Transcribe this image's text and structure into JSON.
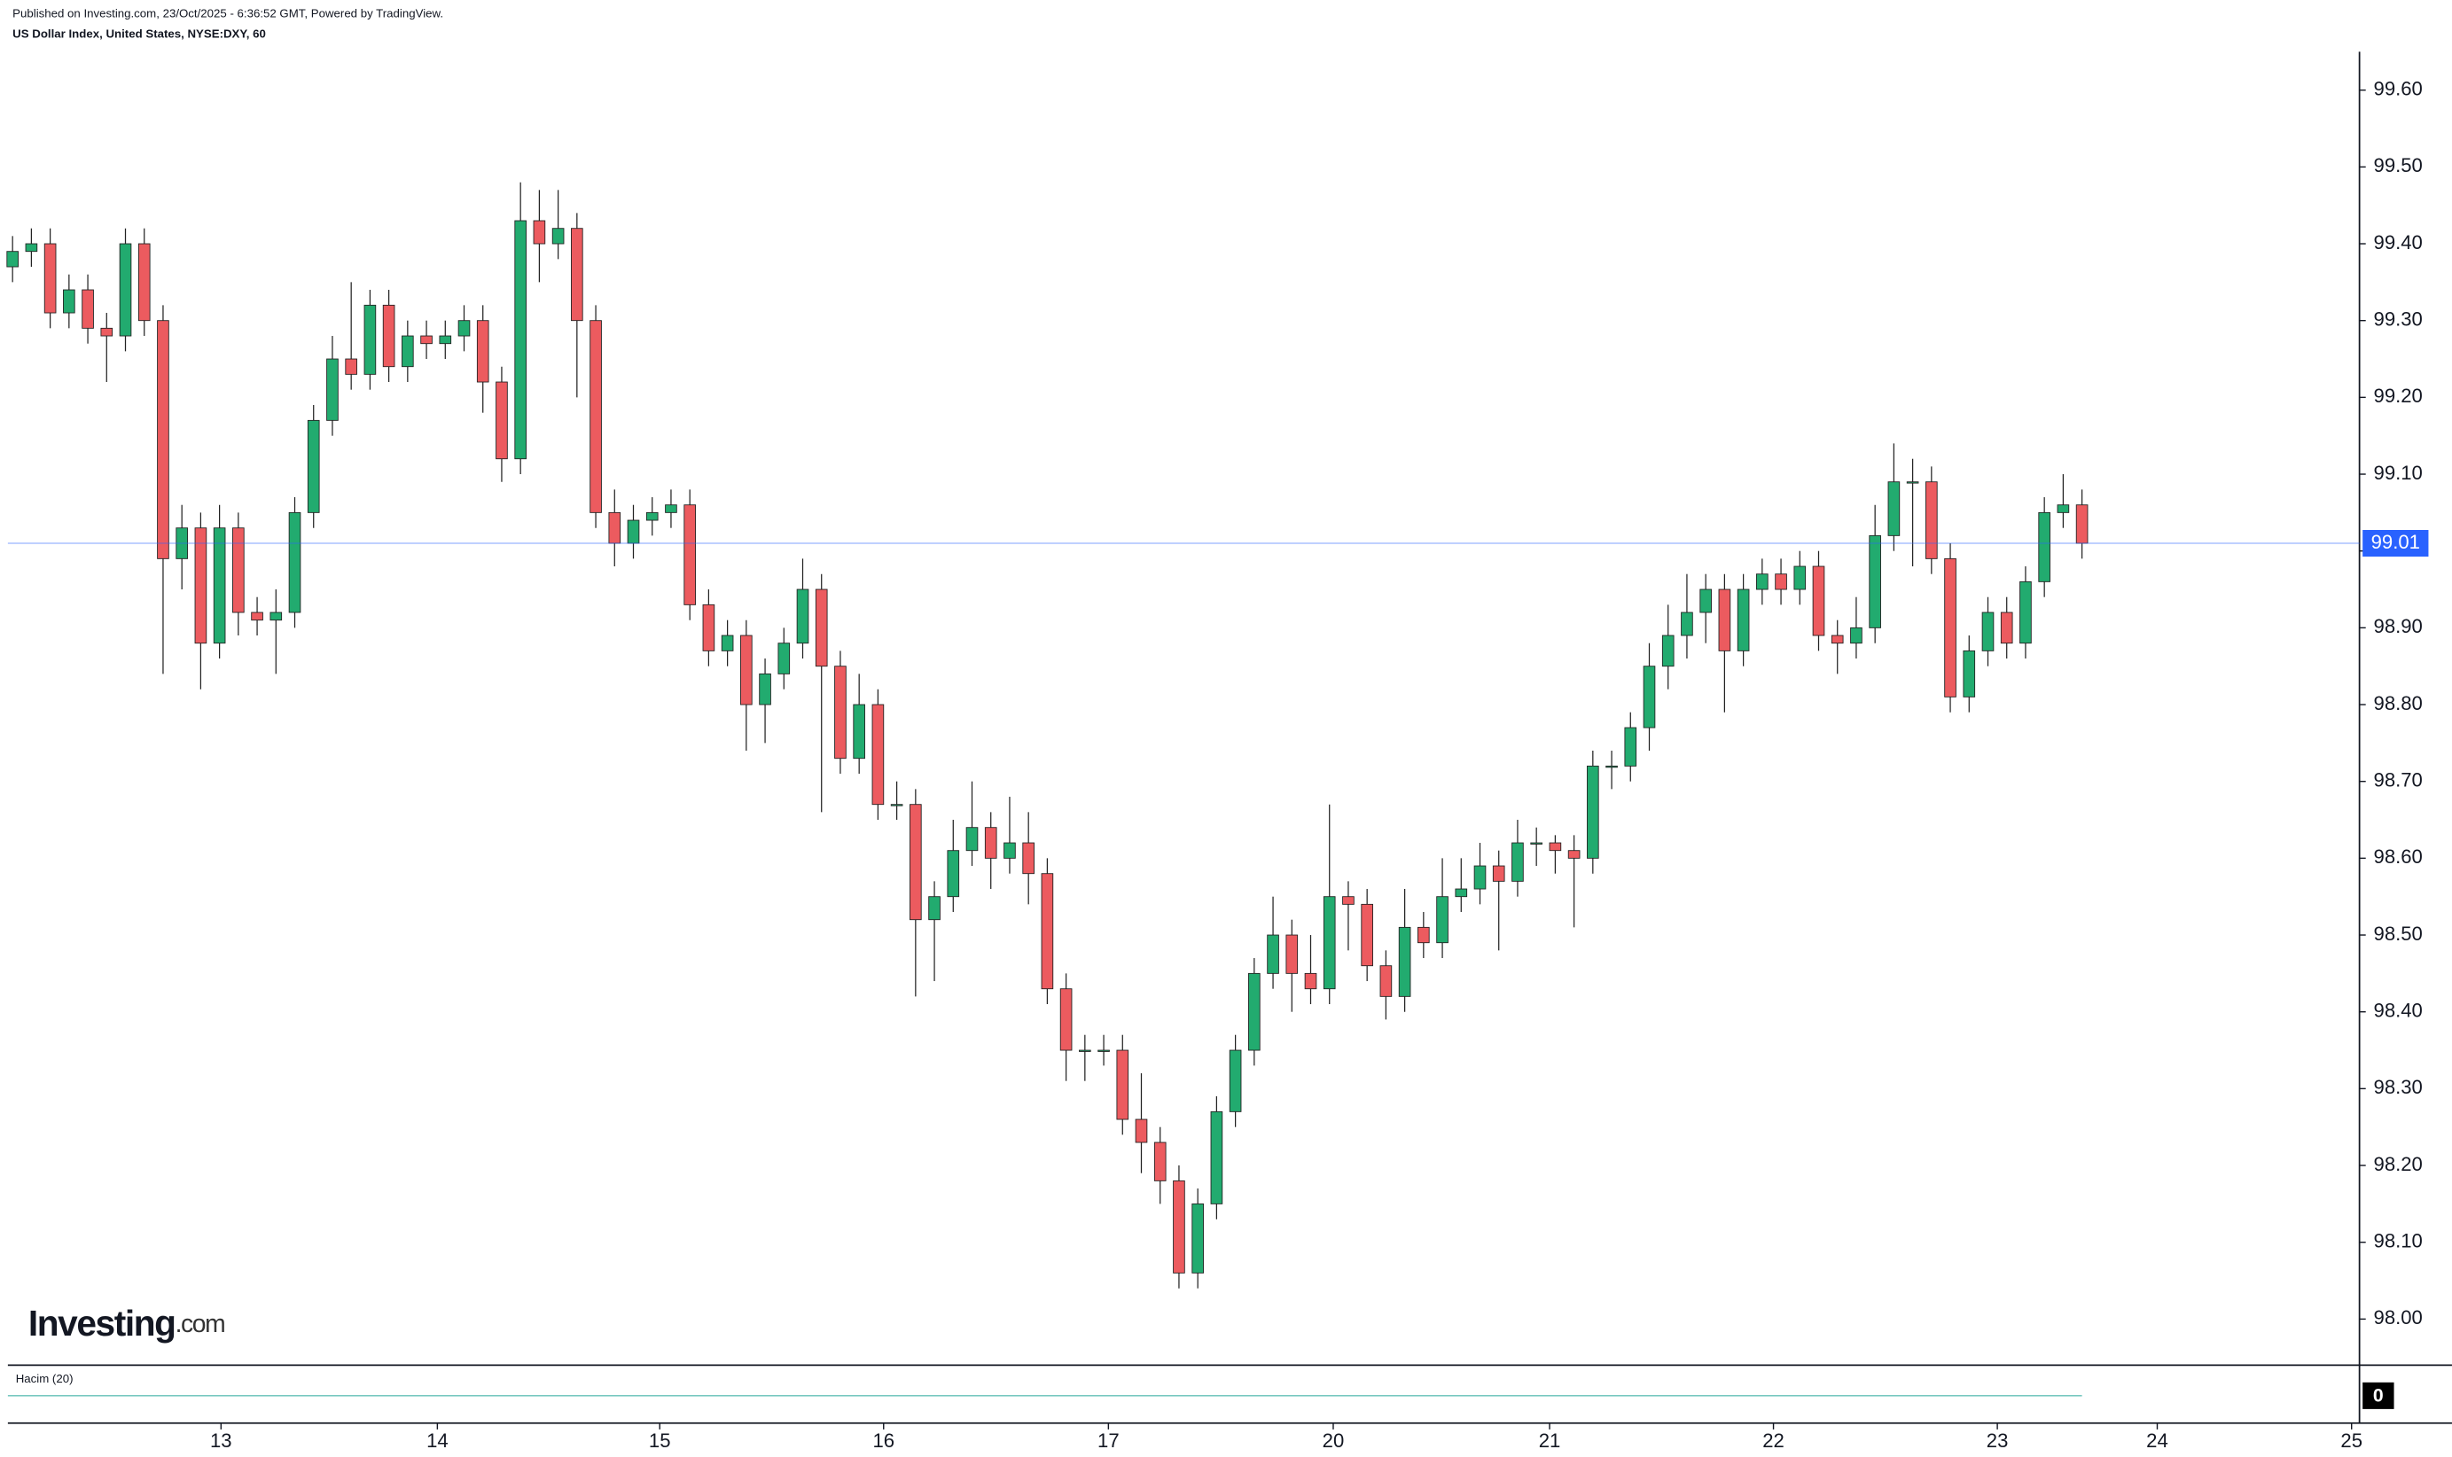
{
  "chart_data": {
    "type": "candlestick",
    "header": "Published on Investing.com, 23/Oct/2025 - 6:36:52 GMT, Powered by TradingView.",
    "title": "US Dollar Index, United States, NYSE:DXY, 60",
    "logo": "Investing",
    "logo_suffix": ".com",
    "volume_label": "Hacim (20)",
    "volume_ticks": [
      0
    ],
    "up_color": "#22ab6f",
    "down_color": "#ec5b5f",
    "last_price": 99.01,
    "last_price_color": "#2962ff",
    "x": [
      0,
      1,
      2,
      3,
      4,
      5,
      6,
      7,
      8,
      9,
      10,
      11,
      12,
      13,
      14,
      15,
      16,
      17,
      18,
      19,
      20,
      21,
      22,
      23,
      24,
      25,
      26,
      27,
      28,
      29,
      30,
      31,
      32,
      33,
      34,
      35,
      36,
      37,
      38,
      39,
      40,
      41,
      42,
      43,
      44,
      45,
      46,
      47,
      48,
      49,
      50,
      51,
      52,
      53,
      54,
      55,
      56,
      57,
      58,
      59,
      60,
      61,
      62,
      63,
      64,
      65,
      66,
      67,
      68,
      69,
      70,
      71,
      72,
      73,
      74,
      75,
      76,
      77,
      78,
      79,
      80,
      81,
      82,
      83,
      84,
      85,
      86,
      87,
      88,
      89,
      90,
      91,
      92,
      93,
      94,
      95,
      96,
      97,
      98,
      99,
      100,
      101,
      102,
      103,
      104,
      105,
      106,
      107,
      108,
      109,
      110
    ],
    "open": [
      99.37,
      99.39,
      99.4,
      99.31,
      99.34,
      99.29,
      99.28,
      99.4,
      99.3,
      98.99,
      99.03,
      98.88,
      99.03,
      98.92,
      98.91,
      98.92,
      99.05,
      99.17,
      99.25,
      99.23,
      99.32,
      99.24,
      99.28,
      99.27,
      99.28,
      99.3,
      99.22,
      99.12,
      99.43,
      99.4,
      99.42,
      99.3,
      99.05,
      99.01,
      99.04,
      99.05,
      99.06,
      98.93,
      98.87,
      98.89,
      98.8,
      98.84,
      98.88,
      98.95,
      98.85,
      98.73,
      98.8,
      98.67,
      98.67,
      98.52,
      98.55,
      98.61,
      98.64,
      98.6,
      98.62,
      98.58,
      98.43,
      98.35,
      98.35,
      98.35,
      98.26,
      98.23,
      98.18,
      98.06,
      98.15,
      98.27,
      98.35,
      98.45,
      98.5,
      98.45,
      98.43,
      98.55,
      98.54,
      98.46,
      98.42,
      98.51,
      98.49,
      98.55,
      98.56,
      98.59,
      98.57,
      98.62,
      98.62,
      98.61,
      98.6,
      98.72,
      98.72,
      98.77,
      98.85,
      98.89,
      98.92,
      98.95,
      98.87,
      98.95,
      98.97,
      98.95,
      98.98,
      98.89,
      98.88,
      98.9,
      99.02,
      99.09,
      99.09,
      98.99,
      98.81,
      98.87,
      98.92,
      98.88,
      98.96,
      99.05,
      99.06
    ],
    "high": [
      99.41,
      99.42,
      99.42,
      99.36,
      99.36,
      99.31,
      99.42,
      99.42,
      99.32,
      99.06,
      99.05,
      99.06,
      99.05,
      98.94,
      98.95,
      99.07,
      99.19,
      99.28,
      99.35,
      99.34,
      99.34,
      99.3,
      99.3,
      99.3,
      99.32,
      99.32,
      99.24,
      99.48,
      99.47,
      99.47,
      99.44,
      99.32,
      99.08,
      99.06,
      99.07,
      99.08,
      99.08,
      98.95,
      98.91,
      98.91,
      98.86,
      98.9,
      98.99,
      98.97,
      98.87,
      98.84,
      98.82,
      98.7,
      98.69,
      98.57,
      98.65,
      98.7,
      98.66,
      98.68,
      98.66,
      98.6,
      98.45,
      98.37,
      98.37,
      98.37,
      98.32,
      98.25,
      98.2,
      98.17,
      98.29,
      98.37,
      98.47,
      98.55,
      98.52,
      98.5,
      98.67,
      98.57,
      98.56,
      98.48,
      98.56,
      98.53,
      98.6,
      98.6,
      98.62,
      98.61,
      98.65,
      98.64,
      98.63,
      98.63,
      98.74,
      98.74,
      98.79,
      98.88,
      98.93,
      98.97,
      98.97,
      98.97,
      98.97,
      98.99,
      98.99,
      99.0,
      99.0,
      98.91,
      98.94,
      99.06,
      99.14,
      99.12,
      99.11,
      99.01,
      98.89,
      98.94,
      98.94,
      98.98,
      99.07,
      99.1,
      99.08
    ],
    "low": [
      99.35,
      99.37,
      99.29,
      99.29,
      99.27,
      99.22,
      99.26,
      99.28,
      98.84,
      98.95,
      98.82,
      98.86,
      98.89,
      98.89,
      98.84,
      98.9,
      99.03,
      99.15,
      99.21,
      99.21,
      99.22,
      99.22,
      99.25,
      99.25,
      99.26,
      99.18,
      99.09,
      99.1,
      99.35,
      99.38,
      99.2,
      99.03,
      98.98,
      98.99,
      99.02,
      99.03,
      98.91,
      98.85,
      98.85,
      98.74,
      98.75,
      98.82,
      98.86,
      98.66,
      98.71,
      98.71,
      98.65,
      98.65,
      98.42,
      98.44,
      98.53,
      98.59,
      98.56,
      98.58,
      98.54,
      98.41,
      98.31,
      98.31,
      98.33,
      98.24,
      98.19,
      98.15,
      98.04,
      98.04,
      98.13,
      98.25,
      98.33,
      98.43,
      98.4,
      98.41,
      98.41,
      98.48,
      98.44,
      98.39,
      98.4,
      98.47,
      98.47,
      98.53,
      98.54,
      98.48,
      98.55,
      98.59,
      98.58,
      98.51,
      98.58,
      98.69,
      98.7,
      98.74,
      98.82,
      98.86,
      98.88,
      98.79,
      98.85,
      98.93,
      98.93,
      98.93,
      98.87,
      98.84,
      98.86,
      98.88,
      99.0,
      98.98,
      98.97,
      98.79,
      98.79,
      98.85,
      98.86,
      98.86,
      98.94,
      99.03,
      98.99
    ],
    "close": [
      99.39,
      99.4,
      99.31,
      99.34,
      99.29,
      99.28,
      99.4,
      99.3,
      98.99,
      99.03,
      98.88,
      99.03,
      98.92,
      98.91,
      98.92,
      99.05,
      99.17,
      99.25,
      99.23,
      99.32,
      99.24,
      99.28,
      99.27,
      99.28,
      99.3,
      99.22,
      99.12,
      99.43,
      99.4,
      99.42,
      99.3,
      99.05,
      99.01,
      99.04,
      99.05,
      99.06,
      98.93,
      98.87,
      98.89,
      98.8,
      98.84,
      98.88,
      98.95,
      98.85,
      98.73,
      98.8,
      98.67,
      98.67,
      98.52,
      98.55,
      98.61,
      98.64,
      98.6,
      98.62,
      98.58,
      98.43,
      98.35,
      98.35,
      98.35,
      98.26,
      98.23,
      98.18,
      98.06,
      98.15,
      98.27,
      98.35,
      98.45,
      98.5,
      98.45,
      98.43,
      98.55,
      98.54,
      98.46,
      98.42,
      98.51,
      98.49,
      98.55,
      98.56,
      98.59,
      98.57,
      98.62,
      98.62,
      98.61,
      98.6,
      98.72,
      98.72,
      98.77,
      98.85,
      98.89,
      98.92,
      98.95,
      98.87,
      98.95,
      98.97,
      98.95,
      98.98,
      98.89,
      98.88,
      98.9,
      99.02,
      99.09,
      99.09,
      98.99,
      98.81,
      98.87,
      98.92,
      98.88,
      98.96,
      99.05,
      99.06,
      99.01
    ],
    "xlim": [
      -0.25,
      124.75
    ],
    "xticks": [
      {
        "value": 11.08,
        "label": "13"
      },
      {
        "value": 22.58,
        "label": "14"
      },
      {
        "value": 34.4,
        "label": "15"
      },
      {
        "value": 46.3,
        "label": "16"
      },
      {
        "value": 58.25,
        "label": "17"
      },
      {
        "value": 70.2,
        "label": "20"
      },
      {
        "value": 81.7,
        "label": "21"
      },
      {
        "value": 93.6,
        "label": "22"
      },
      {
        "value": 105.5,
        "label": "23"
      },
      {
        "value": 114,
        "label": "24"
      },
      {
        "value": 124.33,
        "label": "25"
      }
    ],
    "ylim": [
      97.94,
      99.65
    ],
    "yticks": [
      {
        "value": 98.0,
        "label": "98.00"
      },
      {
        "value": 98.1,
        "label": "98.10"
      },
      {
        "value": 98.2,
        "label": "98.20"
      },
      {
        "value": 98.3,
        "label": "98.30"
      },
      {
        "value": 98.4,
        "label": "98.40"
      },
      {
        "value": 98.5,
        "label": "98.50"
      },
      {
        "value": 98.6,
        "label": "98.60"
      },
      {
        "value": 98.7,
        "label": "98.70"
      },
      {
        "value": 98.8,
        "label": "98.80"
      },
      {
        "value": 98.9,
        "label": "98.90"
      },
      {
        "value": 99.0,
        "label": "99.00"
      },
      {
        "value": 99.1,
        "label": "99.10"
      },
      {
        "value": 99.2,
        "label": "99.20"
      },
      {
        "value": 99.3,
        "label": "99.30"
      },
      {
        "value": 99.4,
        "label": "99.40"
      },
      {
        "value": 99.5,
        "label": "99.50"
      },
      {
        "value": 99.6,
        "label": "99.60"
      }
    ],
    "grid": false
  }
}
